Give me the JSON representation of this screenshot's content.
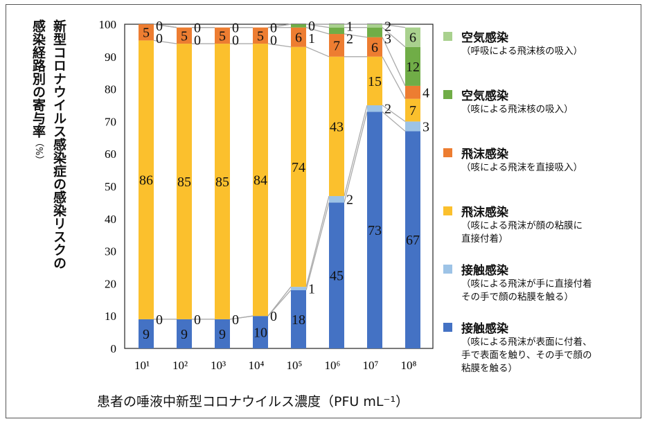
{
  "chart_data": {
    "type": "bar",
    "stacked": true,
    "xlabel": "患者の唾液中新型コロナウイルス濃度（PFU mL⁻¹）",
    "ylabel_lines": [
      "新型コロナウイルス感染症の感染リスクの",
      "感染経路別の寄与率"
    ],
    "ylabel_unit": "（%）",
    "ylim": [
      0,
      100
    ],
    "yticks": [
      0,
      10,
      20,
      30,
      40,
      50,
      60,
      70,
      80,
      90,
      100
    ],
    "categories": [
      "10¹",
      "10²",
      "10³",
      "10⁴",
      "10⁵",
      "10⁶",
      "10⁷",
      "10⁸"
    ],
    "legend_position": "right",
    "series": [
      {
        "name": "接触感染",
        "desc": "（咳による飛沫が表面に付着、\n手で表面を触り、その手で顔の\n粘膜を触る）",
        "color": "#4472c4",
        "values": [
          9,
          9,
          9,
          10,
          18,
          45,
          73,
          67
        ]
      },
      {
        "name": "接触感染",
        "desc": "（咳による飛沫が手に直接付着\nその手で顔の粘膜を触る）",
        "color": "#9dc3e6",
        "values": [
          0,
          0,
          0,
          0,
          1,
          2,
          2,
          3
        ]
      },
      {
        "name": "飛沫感染",
        "desc": "（咳による飛沫が顔の粘膜に\n直接付着）",
        "color": "#fbc02d",
        "values": [
          86,
          85,
          85,
          84,
          74,
          43,
          15,
          7
        ]
      },
      {
        "name": "飛沫感染",
        "desc": "（咳による飛沫を直接吸入）",
        "color": "#ed7d31",
        "values": [
          5,
          5,
          5,
          5,
          6,
          7,
          6,
          4
        ]
      },
      {
        "name": "空気感染",
        "desc": "（咳による飛沫核の吸入）",
        "color": "#70ad47",
        "values": [
          0,
          0,
          0,
          0,
          1,
          2,
          3,
          12
        ]
      },
      {
        "name": "空気感染",
        "desc": "（呼吸による飛沫核の吸入）",
        "color": "#a9d18e",
        "values": [
          0,
          0,
          0,
          0,
          0,
          1,
          2,
          6
        ]
      }
    ]
  }
}
